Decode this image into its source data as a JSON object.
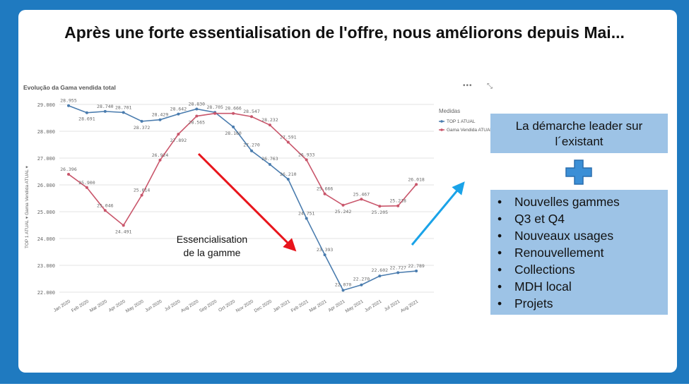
{
  "headline": "Après une forte essentialisation de l'offre, nous améliorons depuis Mai...",
  "chart_title": "Evolução da Gama vendida total",
  "more_icon": "more-dots-icon",
  "expand_icon": "expand-icon",
  "chart_data": {
    "type": "line",
    "title": "Evolução da Gama vendida total",
    "ylabel": "TOP 1 ATUAL ▾ Gama Vendida ATUAL ▾",
    "ylim": [
      22000,
      29000
    ],
    "yticks": [
      "29.000",
      "28.000",
      "27.000",
      "26.000",
      "25.000",
      "24.000",
      "23.000",
      "22.000"
    ],
    "grid": true,
    "legend_title": "Medidas",
    "legend_position": "right",
    "categories": [
      "Jan 2020",
      "Feb 2020",
      "Mar 2020",
      "Apr 2020",
      "May 2020",
      "Jun 2020",
      "Jul 2020",
      "Aug 2020",
      "Sep 2020",
      "Oct 2020",
      "Nov 2020",
      "Dec 2020",
      "Jan 2021",
      "Feb 2021",
      "Mar 2021",
      "Apr 2021",
      "May 2021",
      "Jun 2021",
      "Jul 2021",
      "Aug 2021"
    ],
    "series": [
      {
        "name": "TOP 1 ATUAL",
        "color": "#4a7cae",
        "values": [
          28955,
          28691,
          28740,
          28701,
          28372,
          28429,
          28642,
          28830,
          28705,
          28160,
          27270,
          26763,
          26210,
          24751,
          23393,
          22070,
          22270,
          22602,
          22727,
          22789
        ],
        "labels": [
          "28.955",
          "28.691",
          "28.740",
          "28.701",
          "28.372",
          "28.429",
          "28.642",
          "28.830",
          "28.705",
          "28.160",
          "27.270",
          "26.763",
          "26.210",
          "24.751",
          "23.393",
          "22.070",
          "22.270",
          "22.602",
          "22.727",
          "22.789"
        ]
      },
      {
        "name": "Gama Vendida ATUAL",
        "color": "#c9566b",
        "values": [
          26396,
          25900,
          25046,
          24491,
          25614,
          26924,
          27892,
          28565,
          28666,
          28666,
          28547,
          28232,
          27591,
          26933,
          25666,
          25242,
          25467,
          25205,
          25218,
          26018
        ],
        "labels": [
          "26.396",
          "25.900",
          "25.046",
          "24.491",
          "25.614",
          "26.924",
          "27.892",
          "28.565",
          "",
          "28.666",
          "28.547",
          "28.232",
          "27.591",
          "26.933",
          "25.666",
          "25.242",
          "25.467",
          "25.205",
          "25.218",
          "26.018"
        ]
      }
    ]
  },
  "annotation": {
    "line1": "Essencialisation",
    "line2": "de la gamme"
  },
  "box1": {
    "line1": "La démarche leader sur",
    "line2": "l´existant"
  },
  "plus_icon": "plus-icon",
  "box2": {
    "items": [
      "Nouvelles gammes",
      "Q3 et Q4",
      "Nouveaux usages",
      "Renouvellement",
      "Collections",
      "MDH local",
      "Projets"
    ]
  },
  "colors": {
    "frame": "#1f7ac0",
    "box": "#9dc3e6",
    "down_arrow": "#e8141b",
    "up_arrow": "#1aa3e8"
  }
}
